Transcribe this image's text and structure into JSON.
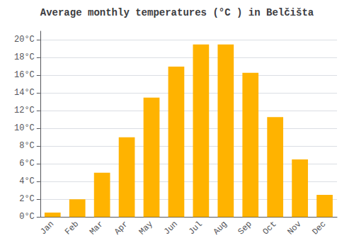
{
  "chart_data": {
    "type": "bar",
    "title": "Average monthly temperatures (°C ) in Belčišta",
    "categories": [
      "Jan",
      "Feb",
      "Mar",
      "Apr",
      "May",
      "Jun",
      "Jul",
      "Aug",
      "Sep",
      "Oct",
      "Nov",
      "Dec"
    ],
    "values": [
      0.5,
      2.0,
      5.0,
      9.0,
      13.5,
      17.0,
      19.5,
      19.5,
      16.3,
      11.3,
      6.5,
      2.5
    ],
    "color": "#FFB300",
    "ylim": [
      0,
      21
    ],
    "yticks": [
      {
        "value": 0,
        "label": "0°C"
      },
      {
        "value": 2,
        "label": "2°C"
      },
      {
        "value": 4,
        "label": "4°C"
      },
      {
        "value": 6,
        "label": "6°C"
      },
      {
        "value": 8,
        "label": "8°C"
      },
      {
        "value": 10,
        "label": "10°C"
      },
      {
        "value": 12,
        "label": "12°C"
      },
      {
        "value": 14,
        "label": "14°C"
      },
      {
        "value": 16,
        "label": "16°C"
      },
      {
        "value": 18,
        "label": "18°C"
      },
      {
        "value": 20,
        "label": "20°C"
      }
    ],
    "grid": true
  }
}
